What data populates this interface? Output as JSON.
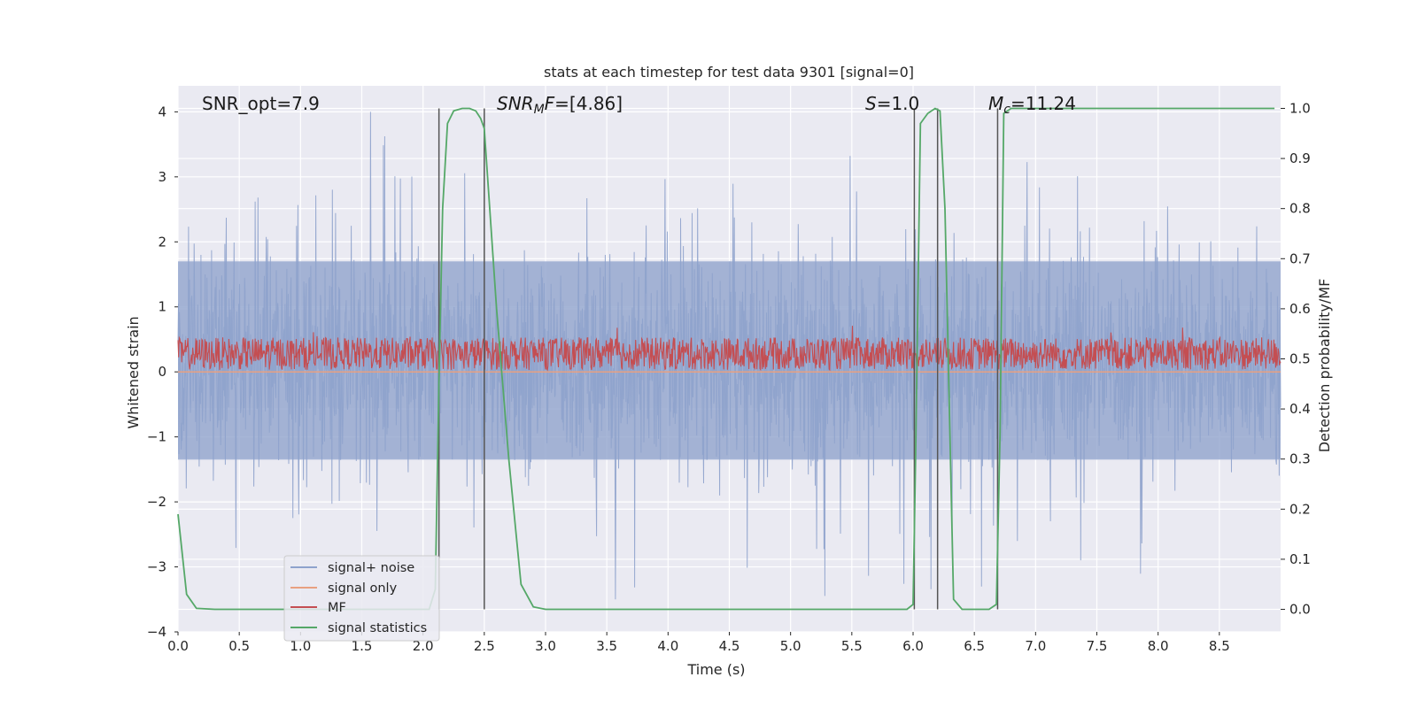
{
  "chart_data": {
    "type": "line",
    "title": "stats at each timestep for test data 9301 [signal=0]",
    "xlabel": "Time (s)",
    "ylabel": "Whitened strain",
    "ylabel_right": "Detection probability/MF",
    "xlim": [
      0,
      9.0
    ],
    "ylim": [
      -4.0,
      4.4
    ],
    "ylim_right": [
      -0.045,
      1.045
    ],
    "x_ticks": [
      "0.0",
      "0.5",
      "1.0",
      "1.5",
      "2.0",
      "2.5",
      "3.0",
      "3.5",
      "4.0",
      "4.5",
      "5.0",
      "5.5",
      "6.0",
      "6.5",
      "7.0",
      "7.5",
      "8.0",
      "8.5"
    ],
    "y_ticks": [
      "4",
      "3",
      "2",
      "1",
      "0",
      "−1",
      "−2",
      "−3",
      "−4"
    ],
    "y_ticks_right": [
      "1.0",
      "0.9",
      "0.8",
      "0.7",
      "0.6",
      "0.5",
      "0.4",
      "0.3",
      "0.2",
      "0.1",
      "0.0"
    ],
    "grid": true,
    "legend_placement": "lower-left",
    "annotations": {
      "snr_opt": "SNR_opt=7.9",
      "snr_mf_italic": "SNR",
      "snr_mf_sub": "M",
      "snr_mf_italic2": "F",
      "snr_mf_rest": "=[4.86]",
      "s_italic": "S",
      "s_rest": "=1.0",
      "mc_italic": "M",
      "mc_sub": "c",
      "mc_rest": "=11.24"
    },
    "vertical_lines_x": [
      2.13,
      2.5,
      6.01,
      6.2,
      6.69
    ],
    "series": [
      {
        "name": "signal+ noise",
        "color": "#8ea2cc",
        "axis": "left",
        "approx_range": [
          -3.5,
          4.0
        ]
      },
      {
        "name": "signal only",
        "color": "#e8a081",
        "axis": "left",
        "values_note": "flat near zero",
        "x": [
          0,
          9.0
        ],
        "y": [
          0.0,
          0.0
        ]
      },
      {
        "name": "MF",
        "color": "#c44e52",
        "axis": "left",
        "approx_range": [
          0.0,
          1.0
        ]
      },
      {
        "name": "signal statistics",
        "color": "#55a868",
        "axis": "right",
        "x": [
          0.0,
          0.07,
          0.15,
          0.3,
          1.0,
          1.5,
          2.0,
          2.05,
          2.1,
          2.13,
          2.16,
          2.2,
          2.25,
          2.32,
          2.38,
          2.43,
          2.47,
          2.5,
          2.6,
          2.7,
          2.8,
          2.9,
          3.0,
          4.0,
          5.0,
          5.5,
          5.95,
          6.0,
          6.02,
          6.06,
          6.12,
          6.18,
          6.22,
          6.26,
          6.33,
          6.4,
          6.5,
          6.62,
          6.68,
          6.71,
          6.74,
          6.8,
          7.5,
          8.0,
          8.5,
          8.95
        ],
        "y": [
          0.19,
          0.03,
          0.002,
          0.0,
          0.0,
          0.0,
          0.0,
          0.0,
          0.04,
          0.45,
          0.8,
          0.97,
          0.995,
          1.0,
          1.0,
          0.995,
          0.98,
          0.96,
          0.6,
          0.3,
          0.05,
          0.005,
          0.0,
          0.0,
          0.0,
          0.0,
          0.0,
          0.01,
          0.3,
          0.97,
          0.99,
          1.0,
          0.995,
          0.8,
          0.02,
          0.0,
          0.0,
          0.0,
          0.01,
          0.35,
          0.99,
          1.0,
          1.0,
          1.0,
          1.0,
          1.0
        ]
      }
    ]
  }
}
